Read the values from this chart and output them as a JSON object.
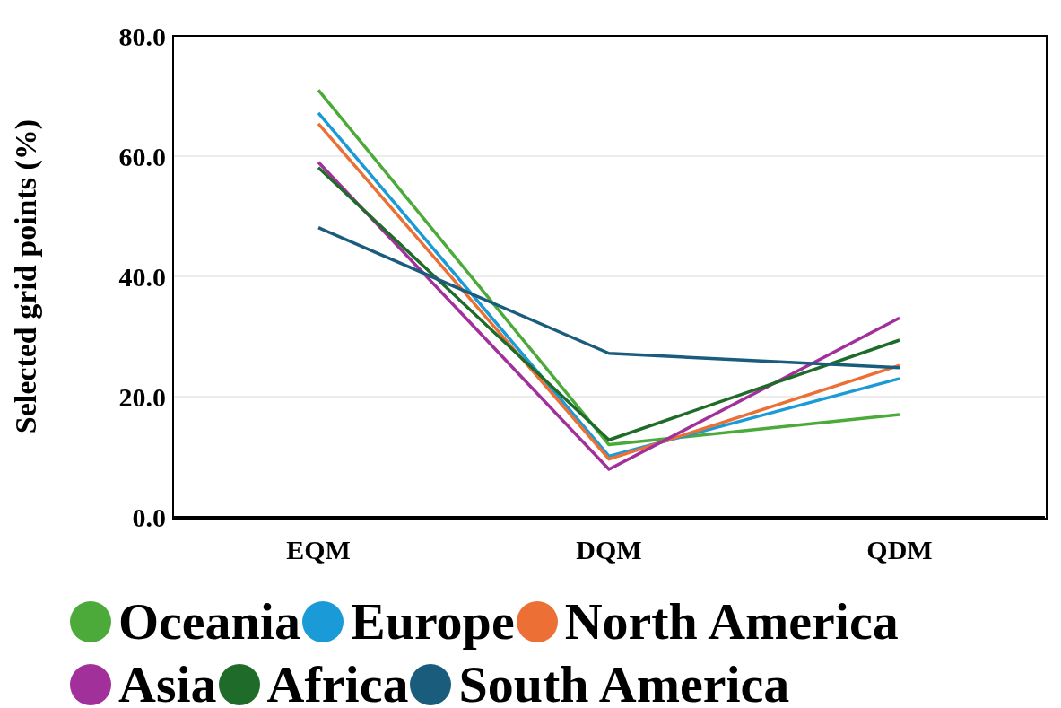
{
  "chart_data": {
    "type": "line",
    "ylabel": "Selected grid points (%)",
    "categories": [
      "EQM",
      "DQM",
      "QDM"
    ],
    "ylim": [
      0,
      80
    ],
    "yticks": [
      {
        "value": 0,
        "label": "0.0"
      },
      {
        "value": 20,
        "label": "20.0"
      },
      {
        "value": 40,
        "label": "40.0"
      },
      {
        "value": 60,
        "label": "60.0"
      },
      {
        "value": 80,
        "label": "80.0"
      }
    ],
    "grid": "y",
    "legend": "bottom",
    "marker": "none",
    "line_style": "solid",
    "series": [
      {
        "name": "Oceania",
        "color": "#4caa3a",
        "values": [
          71.0,
          12.0,
          17.0
        ]
      },
      {
        "name": "Europe",
        "color": "#1a9ad6",
        "values": [
          67.2,
          10.1,
          23.0
        ]
      },
      {
        "name": "North America",
        "color": "#ec7035",
        "values": [
          65.4,
          9.6,
          25.2
        ]
      },
      {
        "name": "Asia",
        "color": "#a2309a",
        "values": [
          59.0,
          7.9,
          33.1
        ]
      },
      {
        "name": "Africa",
        "color": "#1e6b2a",
        "values": [
          58.1,
          12.8,
          29.4
        ]
      },
      {
        "name": "South America",
        "color": "#1a5c7c",
        "values": [
          48.1,
          27.2,
          24.8
        ]
      }
    ]
  }
}
